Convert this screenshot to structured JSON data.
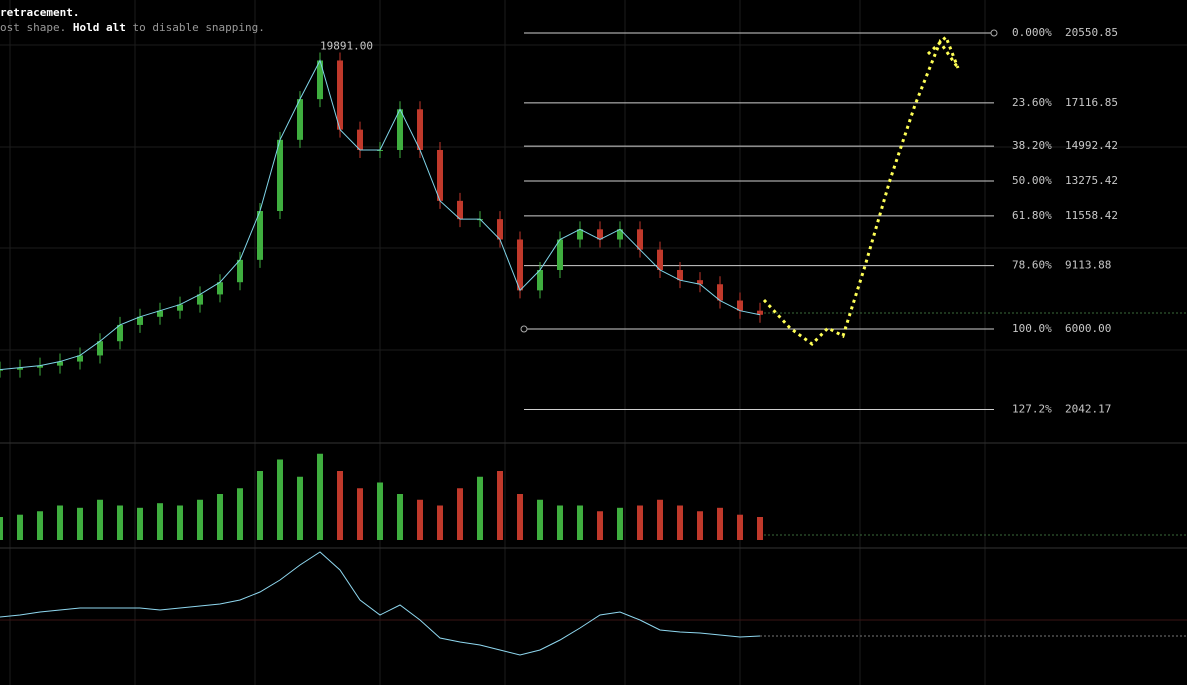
{
  "hint": {
    "line1": "retracement.",
    "line2a": "ost shape. ",
    "line2b": "Hold alt",
    "line2c": " to disable snapping."
  },
  "chart_data": {
    "type": "candlestick",
    "peak": {
      "value": 19891,
      "label": "19891.00"
    },
    "closes": [
      4000,
      4100,
      4200,
      4400,
      4700,
      5400,
      6200,
      6600,
      6900,
      7200,
      7700,
      8300,
      9400,
      11800,
      15300,
      17300,
      19200,
      15800,
      14800,
      14800,
      16800,
      14800,
      12300,
      11400,
      11400,
      10400,
      7900,
      8900,
      10400,
      10900,
      10400,
      10900,
      9900,
      8900,
      8400,
      8200,
      7400,
      6900,
      6700
    ],
    "volume": [
      20,
      22,
      25,
      30,
      28,
      35,
      30,
      28,
      32,
      30,
      35,
      40,
      45,
      60,
      70,
      55,
      75,
      60,
      45,
      50,
      40,
      35,
      30,
      45,
      55,
      60,
      40,
      35,
      30,
      30,
      25,
      28,
      30,
      35,
      30,
      25,
      28,
      22,
      20
    ],
    "oscillator": [
      3,
      5,
      8,
      10,
      12,
      12,
      12,
      12,
      10,
      12,
      14,
      16,
      20,
      28,
      40,
      55,
      68,
      50,
      20,
      5,
      15,
      0,
      -18,
      -22,
      -25,
      -30,
      -35,
      -30,
      -20,
      -8,
      5,
      8,
      0,
      -10,
      -12,
      -13,
      -15,
      -17,
      -16
    ],
    "fib_levels": [
      {
        "ratio": "0.000%",
        "price": {
          "value": 20550.85,
          "label": "20550.85"
        }
      },
      {
        "ratio": "23.60%",
        "price": {
          "value": 17116.85,
          "label": "17116.85"
        }
      },
      {
        "ratio": "38.20%",
        "price": {
          "value": 14992.42,
          "label": "14992.42"
        }
      },
      {
        "ratio": "50.00%",
        "price": {
          "value": 13275.42,
          "label": "13275.42"
        }
      },
      {
        "ratio": "61.80%",
        "price": {
          "value": 11558.42,
          "label": "11558.42"
        }
      },
      {
        "ratio": "78.60%",
        "price": {
          "value": 9113.88,
          "label": "9113.88"
        }
      },
      {
        "ratio": "100.0%",
        "price": {
          "value": 6000,
          "label": "6000.00"
        }
      },
      {
        "ratio": "127.2%",
        "price": {
          "value": 2042.17,
          "label": "2042.17"
        }
      }
    ]
  }
}
